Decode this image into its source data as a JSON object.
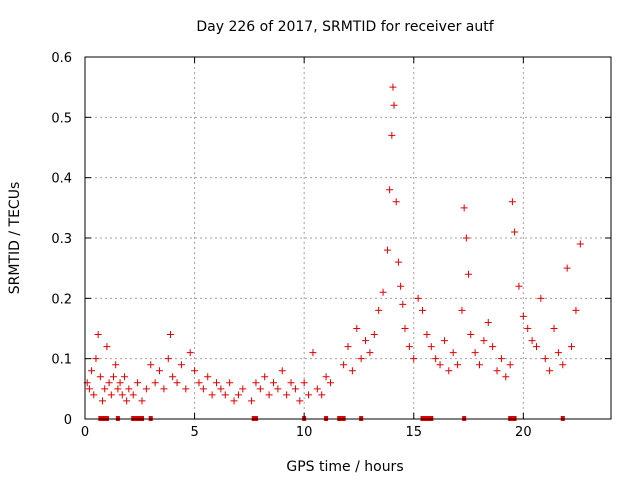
{
  "chart_data": {
    "type": "scatter",
    "title": "Day 226 of 2017, SRMTID for receiver autf",
    "xlabel": "GPS time / hours",
    "ylabel": "SRMTID / TECUs",
    "xlim": [
      0,
      24
    ],
    "ylim": [
      0,
      0.6
    ],
    "x_ticks": [
      0,
      5,
      10,
      15,
      20
    ],
    "x_tick_labels": [
      "0",
      "5",
      "10",
      "15",
      "20"
    ],
    "y_ticks": [
      0,
      0.1,
      0.2,
      0.3,
      0.4,
      0.5,
      0.6
    ],
    "y_tick_labels": [
      "0",
      "0.1",
      "0.2",
      "0.3",
      "0.4",
      "0.5",
      "0.6"
    ],
    "grid": true,
    "marker": "+",
    "series_color": "#e00000",
    "series": [
      {
        "name": "SRMTID",
        "x": [
          0.1,
          0.2,
          0.3,
          0.4,
          0.5,
          0.6,
          0.7,
          0.8,
          0.9,
          1.0,
          1.1,
          1.2,
          1.3,
          1.4,
          1.5,
          1.6,
          1.7,
          1.8,
          1.9,
          2.0,
          2.2,
          2.4,
          2.6,
          2.8,
          3.0,
          3.2,
          3.4,
          3.6,
          3.8,
          3.9,
          4.0,
          4.2,
          4.4,
          4.6,
          4.8,
          5.0,
          5.2,
          5.4,
          5.6,
          5.8,
          6.0,
          6.2,
          6.4,
          6.6,
          6.8,
          7.0,
          7.2,
          7.6,
          7.8,
          8.0,
          8.2,
          8.4,
          8.6,
          8.8,
          9.0,
          9.2,
          9.4,
          9.6,
          9.8,
          10.0,
          10.2,
          10.4,
          10.6,
          10.8,
          11.0,
          11.2,
          11.8,
          12.0,
          12.2,
          12.4,
          12.6,
          12.8,
          13.0,
          13.2,
          13.4,
          13.6,
          13.8,
          13.9,
          14.0,
          14.05,
          14.1,
          14.2,
          14.3,
          14.4,
          14.5,
          14.6,
          14.8,
          15.0,
          15.2,
          15.4,
          15.6,
          15.8,
          16.0,
          16.2,
          16.4,
          16.6,
          16.8,
          17.0,
          17.2,
          17.3,
          17.4,
          17.5,
          17.6,
          17.8,
          18.0,
          18.2,
          18.4,
          18.6,
          18.8,
          19.0,
          19.2,
          19.4,
          19.5,
          19.6,
          19.8,
          20.0,
          20.2,
          20.4,
          20.6,
          20.8,
          21.0,
          21.2,
          21.4,
          21.6,
          21.8,
          22.0,
          22.2,
          22.4,
          22.6
        ],
        "y": [
          0.06,
          0.05,
          0.08,
          0.04,
          0.1,
          0.14,
          0.07,
          0.03,
          0.05,
          0.12,
          0.06,
          0.04,
          0.07,
          0.09,
          0.05,
          0.06,
          0.04,
          0.07,
          0.03,
          0.05,
          0.04,
          0.06,
          0.03,
          0.05,
          0.09,
          0.06,
          0.08,
          0.05,
          0.1,
          0.14,
          0.07,
          0.06,
          0.09,
          0.05,
          0.11,
          0.08,
          0.06,
          0.05,
          0.07,
          0.04,
          0.06,
          0.05,
          0.04,
          0.06,
          0.03,
          0.04,
          0.05,
          0.03,
          0.06,
          0.05,
          0.07,
          0.04,
          0.06,
          0.05,
          0.08,
          0.04,
          0.06,
          0.05,
          0.03,
          0.06,
          0.04,
          0.11,
          0.05,
          0.04,
          0.07,
          0.06,
          0.09,
          0.12,
          0.08,
          0.15,
          0.1,
          0.13,
          0.11,
          0.14,
          0.18,
          0.21,
          0.28,
          0.38,
          0.47,
          0.55,
          0.52,
          0.36,
          0.26,
          0.22,
          0.19,
          0.15,
          0.12,
          0.1,
          0.2,
          0.18,
          0.14,
          0.12,
          0.1,
          0.09,
          0.13,
          0.08,
          0.11,
          0.09,
          0.18,
          0.35,
          0.3,
          0.24,
          0.14,
          0.11,
          0.09,
          0.13,
          0.16,
          0.12,
          0.08,
          0.1,
          0.07,
          0.09,
          0.36,
          0.31,
          0.22,
          0.17,
          0.15,
          0.13,
          0.12,
          0.2,
          0.1,
          0.08,
          0.15,
          0.11,
          0.09,
          0.25,
          0.12,
          0.18,
          0.29
        ]
      }
    ],
    "flags": {
      "description": "red markers along the zero line",
      "x": [
        0.7,
        0.8,
        0.9,
        1.0,
        1.5,
        2.2,
        2.3,
        2.4,
        2.5,
        2.6,
        3.0,
        7.7,
        7.8,
        10.0,
        11.0,
        11.6,
        11.7,
        11.8,
        12.6,
        15.4,
        15.5,
        15.6,
        15.7,
        15.8,
        17.3,
        19.4,
        19.5,
        19.6,
        21.8
      ]
    }
  }
}
